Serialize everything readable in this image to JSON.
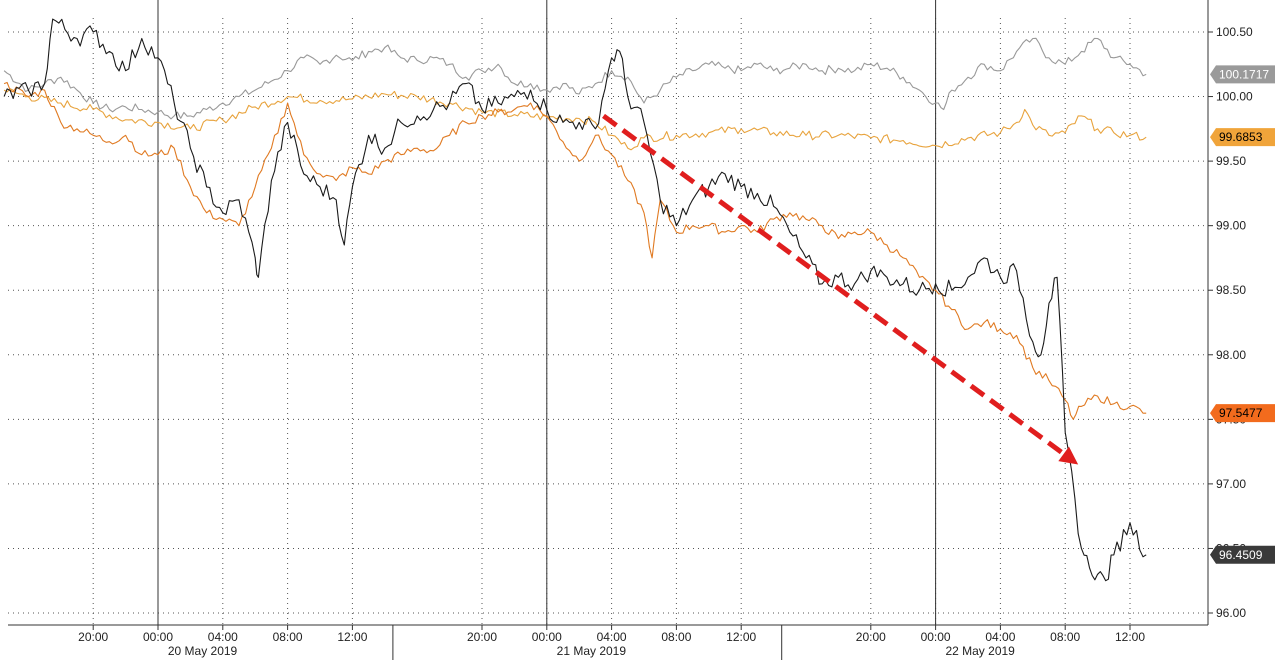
{
  "chart_data": {
    "type": "line",
    "title": "",
    "xlabel": "",
    "ylabel": "",
    "ylim": [
      96.0,
      100.5
    ],
    "y_ticks": [
      "96.00",
      "96.50",
      "97.00",
      "97.50",
      "98.00",
      "98.50",
      "99.00",
      "99.50",
      "100.00",
      "100.50"
    ],
    "x_range_hours": [
      -9.5,
      61
    ],
    "x_ticks": [
      {
        "h": -4,
        "label": "20:00"
      },
      {
        "h": 0,
        "label": "00:00"
      },
      {
        "h": 4,
        "label": "04:00"
      },
      {
        "h": 8,
        "label": "08:00"
      },
      {
        "h": 12,
        "label": "12:00"
      },
      {
        "h": 20,
        "label": "20:00"
      },
      {
        "h": 24,
        "label": "00:00"
      },
      {
        "h": 28,
        "label": "04:00"
      },
      {
        "h": 32,
        "label": "08:00"
      },
      {
        "h": 36,
        "label": "12:00"
      },
      {
        "h": 44,
        "label": "20:00"
      },
      {
        "h": 48,
        "label": "00:00"
      },
      {
        "h": 52,
        "label": "04:00"
      },
      {
        "h": 56,
        "label": "08:00"
      },
      {
        "h": 60,
        "label": "12:00"
      }
    ],
    "date_labels": [
      {
        "h": 2.75,
        "label": "20 May 2019"
      },
      {
        "h": 26.75,
        "label": "21 May 2019"
      },
      {
        "h": 50.75,
        "label": "22 May 2019"
      }
    ],
    "date_separators_h": [
      14.5,
      38.5
    ],
    "day_lines_h": [
      0,
      24,
      48
    ],
    "grid": true,
    "legend": "none",
    "series": [
      {
        "color": "#999999",
        "last_label": "100.1717",
        "last_value": 100.1717,
        "points": [
          [
            -9.5,
            100.2
          ],
          [
            -8,
            100.05
          ],
          [
            -7,
            100.1
          ],
          [
            -6,
            100.15
          ],
          [
            -5,
            100.05
          ],
          [
            -4,
            99.95
          ],
          [
            -3,
            99.9
          ],
          [
            -2,
            99.92
          ],
          [
            -1,
            99.9
          ],
          [
            0,
            99.88
          ],
          [
            1,
            99.85
          ],
          [
            2,
            99.85
          ],
          [
            3,
            99.9
          ],
          [
            4,
            99.95
          ],
          [
            5,
            100.0
          ],
          [
            6,
            100.05
          ],
          [
            7,
            100.12
          ],
          [
            8,
            100.2
          ],
          [
            9,
            100.3
          ],
          [
            10,
            100.25
          ],
          [
            11,
            100.32
          ],
          [
            12,
            100.28
          ],
          [
            13,
            100.35
          ],
          [
            14,
            100.38
          ],
          [
            15,
            100.3
          ],
          [
            16,
            100.28
          ],
          [
            17,
            100.3
          ],
          [
            18,
            100.25
          ],
          [
            19,
            100.15
          ],
          [
            20,
            100.2
          ],
          [
            21,
            100.25
          ],
          [
            22,
            100.1
          ],
          [
            23,
            100.1
          ],
          [
            24,
            100.05
          ],
          [
            25,
            100.1
          ],
          [
            26,
            100.02
          ],
          [
            27,
            100.1
          ],
          [
            28,
            100.2
          ],
          [
            29,
            100.15
          ],
          [
            30,
            99.95
          ],
          [
            31,
            100.05
          ],
          [
            32,
            100.15
          ],
          [
            33,
            100.2
          ],
          [
            34,
            100.25
          ],
          [
            35,
            100.22
          ],
          [
            36,
            100.2
          ],
          [
            37,
            100.25
          ],
          [
            38,
            100.2
          ],
          [
            39,
            100.22
          ],
          [
            40,
            100.25
          ],
          [
            41,
            100.2
          ],
          [
            42,
            100.22
          ],
          [
            43,
            100.2
          ],
          [
            44,
            100.25
          ],
          [
            45,
            100.22
          ],
          [
            46,
            100.15
          ],
          [
            47,
            100.05
          ],
          [
            48,
            99.95
          ],
          [
            48.5,
            99.9
          ],
          [
            49,
            100.05
          ],
          [
            50,
            100.15
          ],
          [
            51,
            100.25
          ],
          [
            52,
            100.2
          ],
          [
            53,
            100.35
          ],
          [
            54,
            100.45
          ],
          [
            55,
            100.3
          ],
          [
            56,
            100.25
          ],
          [
            57,
            100.35
          ],
          [
            58,
            100.45
          ],
          [
            59,
            100.3
          ],
          [
            60,
            100.25
          ],
          [
            61,
            100.1717
          ]
        ]
      },
      {
        "color": "#e8a33d",
        "last_label": "99.6853",
        "last_value": 99.6853,
        "points": [
          [
            -9.5,
            100.05
          ],
          [
            -8,
            100.0
          ],
          [
            -6,
            99.95
          ],
          [
            -4,
            99.9
          ],
          [
            -2,
            99.82
          ],
          [
            0,
            99.8
          ],
          [
            2,
            99.75
          ],
          [
            4,
            99.82
          ],
          [
            6,
            99.92
          ],
          [
            8,
            100.0
          ],
          [
            10,
            99.97
          ],
          [
            12,
            99.98
          ],
          [
            14,
            100.02
          ],
          [
            16,
            100.0
          ],
          [
            18,
            99.95
          ],
          [
            20,
            99.88
          ],
          [
            22,
            99.86
          ],
          [
            24,
            99.84
          ],
          [
            26,
            99.83
          ],
          [
            27,
            99.8
          ],
          [
            28,
            99.7
          ],
          [
            29,
            99.6
          ],
          [
            30,
            99.68
          ],
          [
            32,
            99.7
          ],
          [
            34,
            99.72
          ],
          [
            36,
            99.75
          ],
          [
            38,
            99.72
          ],
          [
            40,
            99.7
          ],
          [
            42,
            99.7
          ],
          [
            44,
            99.68
          ],
          [
            46,
            99.66
          ],
          [
            48,
            99.62
          ],
          [
            50,
            99.68
          ],
          [
            52,
            99.72
          ],
          [
            53,
            99.8
          ],
          [
            53.5,
            99.9
          ],
          [
            54,
            99.78
          ],
          [
            55,
            99.7
          ],
          [
            56,
            99.72
          ],
          [
            57,
            99.85
          ],
          [
            58,
            99.75
          ],
          [
            59,
            99.72
          ],
          [
            60,
            99.7
          ],
          [
            61,
            99.6853
          ]
        ]
      },
      {
        "color": "#e07a22",
        "last_label": "97.5477",
        "last_value": 97.5477,
        "points": [
          [
            -9.5,
            100.1
          ],
          [
            -8,
            100.0
          ],
          [
            -7,
            100.05
          ],
          [
            -6,
            99.8
          ],
          [
            -5,
            99.75
          ],
          [
            -4,
            99.7
          ],
          [
            -3,
            99.65
          ],
          [
            -2,
            99.7
          ],
          [
            -1,
            99.55
          ],
          [
            0,
            99.55
          ],
          [
            1,
            99.6
          ],
          [
            2,
            99.3
          ],
          [
            3,
            99.1
          ],
          [
            4,
            99.05
          ],
          [
            5,
            99.0
          ],
          [
            6,
            99.3
          ],
          [
            7,
            99.6
          ],
          [
            8,
            99.95
          ],
          [
            9,
            99.55
          ],
          [
            10,
            99.4
          ],
          [
            11,
            99.35
          ],
          [
            12,
            99.45
          ],
          [
            13,
            99.4
          ],
          [
            14,
            99.5
          ],
          [
            15,
            99.55
          ],
          [
            16,
            99.6
          ],
          [
            17,
            99.58
          ],
          [
            18,
            99.7
          ],
          [
            19,
            99.8
          ],
          [
            20,
            99.85
          ],
          [
            21,
            99.88
          ],
          [
            22,
            99.9
          ],
          [
            23,
            99.95
          ],
          [
            24,
            99.85
          ],
          [
            25,
            99.65
          ],
          [
            26,
            99.5
          ],
          [
            27,
            99.7
          ],
          [
            28,
            99.55
          ],
          [
            29,
            99.35
          ],
          [
            30,
            99.1
          ],
          [
            30.5,
            98.75
          ],
          [
            31,
            99.2
          ],
          [
            32,
            98.95
          ],
          [
            33,
            99.0
          ],
          [
            34,
            99.0
          ],
          [
            35,
            98.95
          ],
          [
            36,
            99.0
          ],
          [
            37,
            98.95
          ],
          [
            38,
            99.05
          ],
          [
            39,
            99.1
          ],
          [
            40,
            99.05
          ],
          [
            41,
            99.0
          ],
          [
            42,
            98.9
          ],
          [
            43,
            98.95
          ],
          [
            44,
            98.95
          ],
          [
            45,
            98.85
          ],
          [
            46,
            98.75
          ],
          [
            47,
            98.6
          ],
          [
            48,
            98.5
          ],
          [
            49,
            98.35
          ],
          [
            50,
            98.2
          ],
          [
            51,
            98.25
          ],
          [
            52,
            98.2
          ],
          [
            53,
            98.15
          ],
          [
            54,
            97.9
          ],
          [
            55,
            97.8
          ],
          [
            56,
            97.65
          ],
          [
            56.5,
            97.5
          ],
          [
            57,
            97.6
          ],
          [
            58,
            97.68
          ],
          [
            59,
            97.62
          ],
          [
            60,
            97.6
          ],
          [
            61,
            97.5477
          ]
        ]
      },
      {
        "color": "#1a1a1a",
        "last_label": "96.4509",
        "last_value": 96.4509,
        "points": [
          [
            -9.5,
            100.0
          ],
          [
            -8,
            100.05
          ],
          [
            -7,
            100.1
          ],
          [
            -6.5,
            100.6
          ],
          [
            -5,
            100.45
          ],
          [
            -4,
            100.5
          ],
          [
            -3,
            100.35
          ],
          [
            -2,
            100.2
          ],
          [
            -1,
            100.45
          ],
          [
            0,
            100.3
          ],
          [
            1,
            99.95
          ],
          [
            2,
            99.6
          ],
          [
            3,
            99.3
          ],
          [
            4,
            99.1
          ],
          [
            5,
            99.2
          ],
          [
            6,
            98.75
          ],
          [
            6.2,
            98.6
          ],
          [
            7,
            99.35
          ],
          [
            8,
            99.8
          ],
          [
            9,
            99.4
          ],
          [
            10,
            99.3
          ],
          [
            11,
            99.2
          ],
          [
            11.5,
            98.85
          ],
          [
            12,
            99.3
          ],
          [
            13,
            99.7
          ],
          [
            14,
            99.6
          ],
          [
            15,
            99.8
          ],
          [
            16,
            99.85
          ],
          [
            17,
            99.9
          ],
          [
            18,
            99.95
          ],
          [
            19,
            100.1
          ],
          [
            20,
            99.9
          ],
          [
            21,
            99.95
          ],
          [
            22,
            100.0
          ],
          [
            23,
            100.05
          ],
          [
            24,
            99.9
          ],
          [
            25,
            99.8
          ],
          [
            26,
            99.8
          ],
          [
            27,
            99.75
          ],
          [
            28,
            100.3
          ],
          [
            28.5,
            100.35
          ],
          [
            29,
            100.0
          ],
          [
            30,
            99.8
          ],
          [
            31,
            99.2
          ],
          [
            32,
            99.0
          ],
          [
            33,
            99.2
          ],
          [
            34,
            99.3
          ],
          [
            35,
            99.4
          ],
          [
            36,
            99.3
          ],
          [
            37,
            99.25
          ],
          [
            38,
            99.15
          ],
          [
            39,
            98.95
          ],
          [
            40,
            98.75
          ],
          [
            41,
            98.55
          ],
          [
            42,
            98.6
          ],
          [
            43,
            98.55
          ],
          [
            44,
            98.65
          ],
          [
            45,
            98.6
          ],
          [
            46,
            98.55
          ],
          [
            47,
            98.5
          ],
          [
            48,
            98.55
          ],
          [
            49,
            98.5
          ],
          [
            50,
            98.6
          ],
          [
            51,
            98.75
          ],
          [
            52,
            98.6
          ],
          [
            53,
            98.65
          ],
          [
            54,
            98.1
          ],
          [
            54.5,
            98.0
          ],
          [
            55,
            98.4
          ],
          [
            55.5,
            98.6
          ],
          [
            56,
            97.4
          ],
          [
            57,
            96.5
          ],
          [
            57.5,
            96.35
          ],
          [
            58,
            96.3
          ],
          [
            58.5,
            96.25
          ],
          [
            59,
            96.45
          ],
          [
            60,
            96.7
          ],
          [
            61,
            96.4509
          ]
        ]
      }
    ],
    "annotation": {
      "type": "trend-arrow",
      "color": "#e01e1e",
      "from": [
        27.5,
        99.85
      ],
      "to": [
        56.8,
        97.15
      ]
    }
  }
}
